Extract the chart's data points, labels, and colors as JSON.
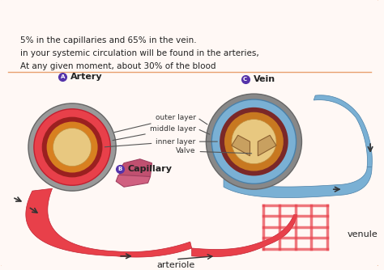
{
  "bg_color": "#fff8f5",
  "border_color": "#e8a070",
  "title_top": "arteriole",
  "title_venule": "venule",
  "label_artery": "Artery",
  "label_vein": "Vein",
  "label_capillary": "Capillary",
  "label_valve": "Valve",
  "label_inner": "inner layer",
  "label_middle": "middle layer",
  "label_outer": "outer layer",
  "text_line1": "At any given moment, about 30% of the blood",
  "text_line2": "in your systemic circulation will be found in the arteries,",
  "text_line3": "5% in the capillaries and 65% in the vein.",
  "artery_color": "#e8404a",
  "artery_dark": "#c02030",
  "vein_color": "#7ab0d4",
  "vein_dark": "#4a80a8",
  "inner_color": "#c8a060",
  "middle_color": "#8b3a3a",
  "outer_color": "#888888",
  "lumen_color": "#e8c880",
  "capillary_color": "#d06080",
  "text_color": "#222222",
  "label_color": "#333333",
  "circle_label_color": "#5533aa"
}
